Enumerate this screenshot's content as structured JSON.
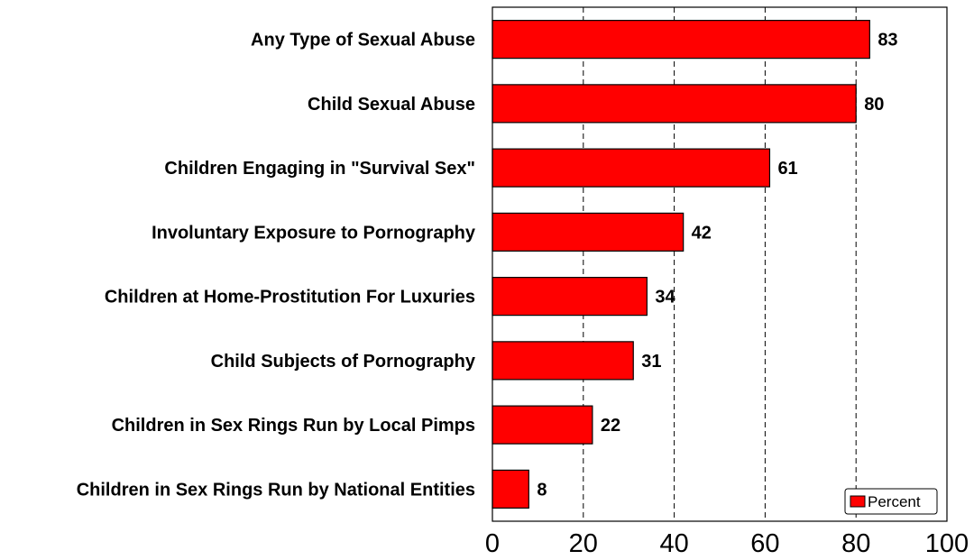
{
  "chart_data": {
    "type": "bar",
    "orientation": "horizontal",
    "categories": [
      "Any Type of Sexual Abuse",
      "Child Sexual Abuse",
      "Children Engaging in \"Survival Sex\"",
      "Involuntary Exposure to Pornography",
      "Children at Home-Prostitution For Luxuries",
      "Child Subjects of Pornography",
      "Children in Sex Rings Run by Local Pimps",
      "Children in Sex Rings Run by National Entities"
    ],
    "series": [
      {
        "name": "Percent",
        "values": [
          83,
          80,
          61,
          42,
          34,
          31,
          22,
          8
        ]
      }
    ],
    "data_labels": [
      "83",
      "80",
      "61",
      "42",
      "34",
      "31",
      "22",
      "8"
    ],
    "x_ticks": [
      "0",
      "20",
      "40",
      "60",
      "80",
      "100"
    ],
    "xlim": [
      0,
      100
    ],
    "grid": "vertical dashed",
    "legend_position": "bottom-right",
    "colors": {
      "bar": "#ff0000",
      "bar_edge": "#000000"
    }
  }
}
